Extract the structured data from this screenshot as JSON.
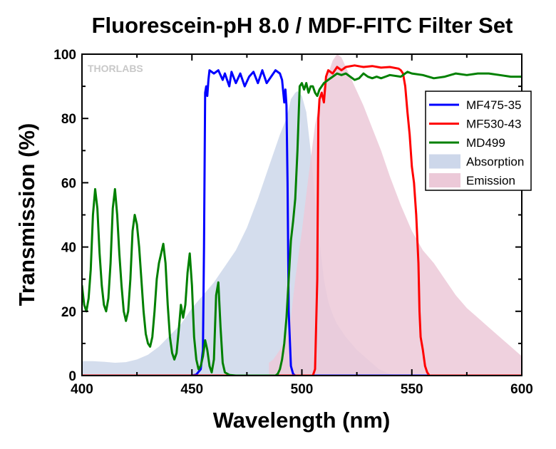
{
  "chart_data": {
    "type": "line",
    "title": "Fluorescein-pH 8.0 / MDF-FITC Filter Set",
    "xlabel": "Wavelength (nm)",
    "ylabel": "Transmission (%)",
    "xlim": [
      400,
      600
    ],
    "ylim": [
      0,
      100
    ],
    "xticks": [
      400,
      450,
      500,
      550,
      600
    ],
    "yticks": [
      0,
      20,
      40,
      60,
      80,
      100
    ],
    "grid": false,
    "legend_position": "top-right",
    "watermark": "THORLABS",
    "series": [
      {
        "name": "MF475-35",
        "kind": "line",
        "color": "#0000ff",
        "points": [
          [
            400,
            0
          ],
          [
            450,
            0
          ],
          [
            452,
            0.3
          ],
          [
            454,
            2
          ],
          [
            455,
            8
          ],
          [
            455.5,
            40
          ],
          [
            456,
            88
          ],
          [
            456.5,
            90
          ],
          [
            457,
            87
          ],
          [
            457.5,
            92
          ],
          [
            458,
            95
          ],
          [
            460,
            94
          ],
          [
            462,
            95
          ],
          [
            464,
            92
          ],
          [
            465,
            94
          ],
          [
            467,
            90
          ],
          [
            468,
            94.5
          ],
          [
            470,
            91
          ],
          [
            472,
            94
          ],
          [
            474,
            90
          ],
          [
            476,
            93
          ],
          [
            478,
            94.5
          ],
          [
            480,
            91
          ],
          [
            482,
            95
          ],
          [
            484,
            91
          ],
          [
            486,
            93
          ],
          [
            488,
            95
          ],
          [
            490,
            94
          ],
          [
            491,
            92
          ],
          [
            492,
            85
          ],
          [
            492.5,
            89
          ],
          [
            493,
            84
          ],
          [
            493.5,
            60
          ],
          [
            494,
            20
          ],
          [
            495,
            3
          ],
          [
            496,
            0.5
          ],
          [
            497,
            0
          ],
          [
            600,
            0
          ]
        ]
      },
      {
        "name": "MF530-43",
        "kind": "line",
        "color": "#ff0000",
        "points": [
          [
            400,
            0
          ],
          [
            505,
            0
          ],
          [
            506,
            2
          ],
          [
            507,
            30
          ],
          [
            507.5,
            80
          ],
          [
            508,
            86
          ],
          [
            509,
            88
          ],
          [
            510,
            85
          ],
          [
            511,
            93
          ],
          [
            512,
            95
          ],
          [
            514,
            94
          ],
          [
            516,
            96
          ],
          [
            518,
            95
          ],
          [
            520,
            96
          ],
          [
            524,
            96.5
          ],
          [
            528,
            96
          ],
          [
            532,
            96.3
          ],
          [
            536,
            95.8
          ],
          [
            540,
            96
          ],
          [
            544,
            95.5
          ],
          [
            545,
            95
          ],
          [
            546,
            94
          ],
          [
            547,
            90
          ],
          [
            548,
            82
          ],
          [
            549,
            75
          ],
          [
            550,
            65
          ],
          [
            551,
            60
          ],
          [
            552,
            50
          ],
          [
            553,
            35
          ],
          [
            553.5,
            20
          ],
          [
            554,
            12
          ],
          [
            555,
            8
          ],
          [
            556,
            3
          ],
          [
            557,
            1
          ],
          [
            558,
            0
          ],
          [
            600,
            0
          ]
        ]
      },
      {
        "name": "MD499",
        "kind": "line",
        "color": "#008000",
        "points": [
          [
            400,
            28
          ],
          [
            401,
            22
          ],
          [
            402,
            20
          ],
          [
            403,
            24
          ],
          [
            404,
            33
          ],
          [
            405,
            50
          ],
          [
            406,
            58
          ],
          [
            407,
            52
          ],
          [
            408,
            38
          ],
          [
            409,
            28
          ],
          [
            410,
            22
          ],
          [
            411,
            20
          ],
          [
            412,
            24
          ],
          [
            413,
            35
          ],
          [
            414,
            52
          ],
          [
            415,
            58
          ],
          [
            416,
            50
          ],
          [
            417,
            38
          ],
          [
            418,
            28
          ],
          [
            419,
            20
          ],
          [
            420,
            17
          ],
          [
            421,
            20
          ],
          [
            422,
            30
          ],
          [
            423,
            45
          ],
          [
            424,
            50
          ],
          [
            425,
            47
          ],
          [
            426,
            40
          ],
          [
            427,
            30
          ],
          [
            428,
            20
          ],
          [
            429,
            13
          ],
          [
            430,
            10
          ],
          [
            431,
            9
          ],
          [
            432,
            12
          ],
          [
            433,
            20
          ],
          [
            434,
            30
          ],
          [
            435,
            35
          ],
          [
            436,
            38
          ],
          [
            437,
            41
          ],
          [
            438,
            35
          ],
          [
            439,
            22
          ],
          [
            440,
            12
          ],
          [
            441,
            7
          ],
          [
            442,
            5
          ],
          [
            443,
            7
          ],
          [
            444,
            14
          ],
          [
            445,
            22
          ],
          [
            446,
            18
          ],
          [
            447,
            22
          ],
          [
            448,
            32
          ],
          [
            449,
            38
          ],
          [
            450,
            28
          ],
          [
            451,
            12
          ],
          [
            452,
            5
          ],
          [
            453,
            2
          ],
          [
            454,
            3
          ],
          [
            455,
            6
          ],
          [
            456,
            11
          ],
          [
            457,
            8
          ],
          [
            458,
            3
          ],
          [
            459,
            1
          ],
          [
            460,
            5
          ],
          [
            461,
            25
          ],
          [
            462,
            29
          ],
          [
            463,
            15
          ],
          [
            464,
            4
          ],
          [
            465,
            1
          ],
          [
            467,
            0.2
          ],
          [
            470,
            0
          ],
          [
            488,
            0
          ],
          [
            489,
            0.5
          ],
          [
            490,
            2
          ],
          [
            491,
            5
          ],
          [
            492,
            10
          ],
          [
            493,
            18
          ],
          [
            494,
            30
          ],
          [
            495,
            42
          ],
          [
            496,
            48
          ],
          [
            497,
            55
          ],
          [
            498,
            70
          ],
          [
            499,
            90
          ],
          [
            500,
            91
          ],
          [
            501,
            89
          ],
          [
            502,
            91
          ],
          [
            503,
            88
          ],
          [
            504,
            90
          ],
          [
            505,
            90
          ],
          [
            506,
            88
          ],
          [
            507,
            87
          ],
          [
            508,
            89
          ],
          [
            509,
            90
          ],
          [
            510,
            91
          ],
          [
            512,
            92
          ],
          [
            514,
            93
          ],
          [
            516,
            94
          ],
          [
            518,
            93.5
          ],
          [
            520,
            94
          ],
          [
            522,
            93
          ],
          [
            524,
            92
          ],
          [
            526,
            92.5
          ],
          [
            528,
            94
          ],
          [
            530,
            93
          ],
          [
            532,
            92.5
          ],
          [
            534,
            93
          ],
          [
            536,
            92.5
          ],
          [
            538,
            93
          ],
          [
            540,
            93.5
          ],
          [
            545,
            93
          ],
          [
            548,
            94.5
          ],
          [
            550,
            94
          ],
          [
            555,
            93.5
          ],
          [
            560,
            92.5
          ],
          [
            565,
            93
          ],
          [
            570,
            94
          ],
          [
            575,
            93.5
          ],
          [
            580,
            94
          ],
          [
            585,
            94
          ],
          [
            590,
            93.5
          ],
          [
            595,
            93
          ],
          [
            600,
            93
          ]
        ]
      },
      {
        "name": "Absorption",
        "kind": "area",
        "color": "#cdd7ea",
        "points": [
          [
            400,
            4.5
          ],
          [
            405,
            4.5
          ],
          [
            410,
            4.3
          ],
          [
            415,
            4
          ],
          [
            420,
            4.2
          ],
          [
            425,
            5
          ],
          [
            430,
            6.5
          ],
          [
            435,
            9
          ],
          [
            440,
            12.5
          ],
          [
            445,
            16
          ],
          [
            450,
            21
          ],
          [
            455,
            25
          ],
          [
            460,
            29
          ],
          [
            465,
            34
          ],
          [
            470,
            39
          ],
          [
            475,
            46
          ],
          [
            480,
            55
          ],
          [
            485,
            65
          ],
          [
            490,
            75
          ],
          [
            493,
            80
          ],
          [
            495,
            86
          ],
          [
            497,
            88
          ],
          [
            498,
            88.5
          ],
          [
            500,
            87
          ],
          [
            502,
            82
          ],
          [
            504,
            70
          ],
          [
            506,
            55
          ],
          [
            508,
            42
          ],
          [
            510,
            30
          ],
          [
            512,
            23
          ],
          [
            514,
            19
          ],
          [
            516,
            16
          ],
          [
            518,
            14
          ],
          [
            520,
            12
          ],
          [
            525,
            8
          ],
          [
            530,
            5
          ],
          [
            535,
            2
          ],
          [
            540,
            0.5
          ],
          [
            545,
            0
          ],
          [
            600,
            0
          ]
        ]
      },
      {
        "name": "Emission",
        "kind": "area",
        "color": "#ecc9d8",
        "points": [
          [
            485,
            4
          ],
          [
            487,
            5
          ],
          [
            490,
            8
          ],
          [
            493,
            12
          ],
          [
            495,
            18
          ],
          [
            497,
            30
          ],
          [
            500,
            45
          ],
          [
            503,
            62
          ],
          [
            506,
            78
          ],
          [
            509,
            88
          ],
          [
            512,
            94
          ],
          [
            514,
            98
          ],
          [
            516,
            100
          ],
          [
            518,
            99
          ],
          [
            520,
            96
          ],
          [
            524,
            90
          ],
          [
            528,
            84
          ],
          [
            532,
            77
          ],
          [
            536,
            70
          ],
          [
            540,
            62
          ],
          [
            545,
            53
          ],
          [
            550,
            45
          ],
          [
            555,
            39
          ],
          [
            560,
            35
          ],
          [
            565,
            30
          ],
          [
            570,
            25
          ],
          [
            575,
            21
          ],
          [
            580,
            18
          ],
          [
            585,
            15
          ],
          [
            590,
            12
          ],
          [
            595,
            9
          ],
          [
            600,
            6
          ]
        ]
      }
    ]
  }
}
